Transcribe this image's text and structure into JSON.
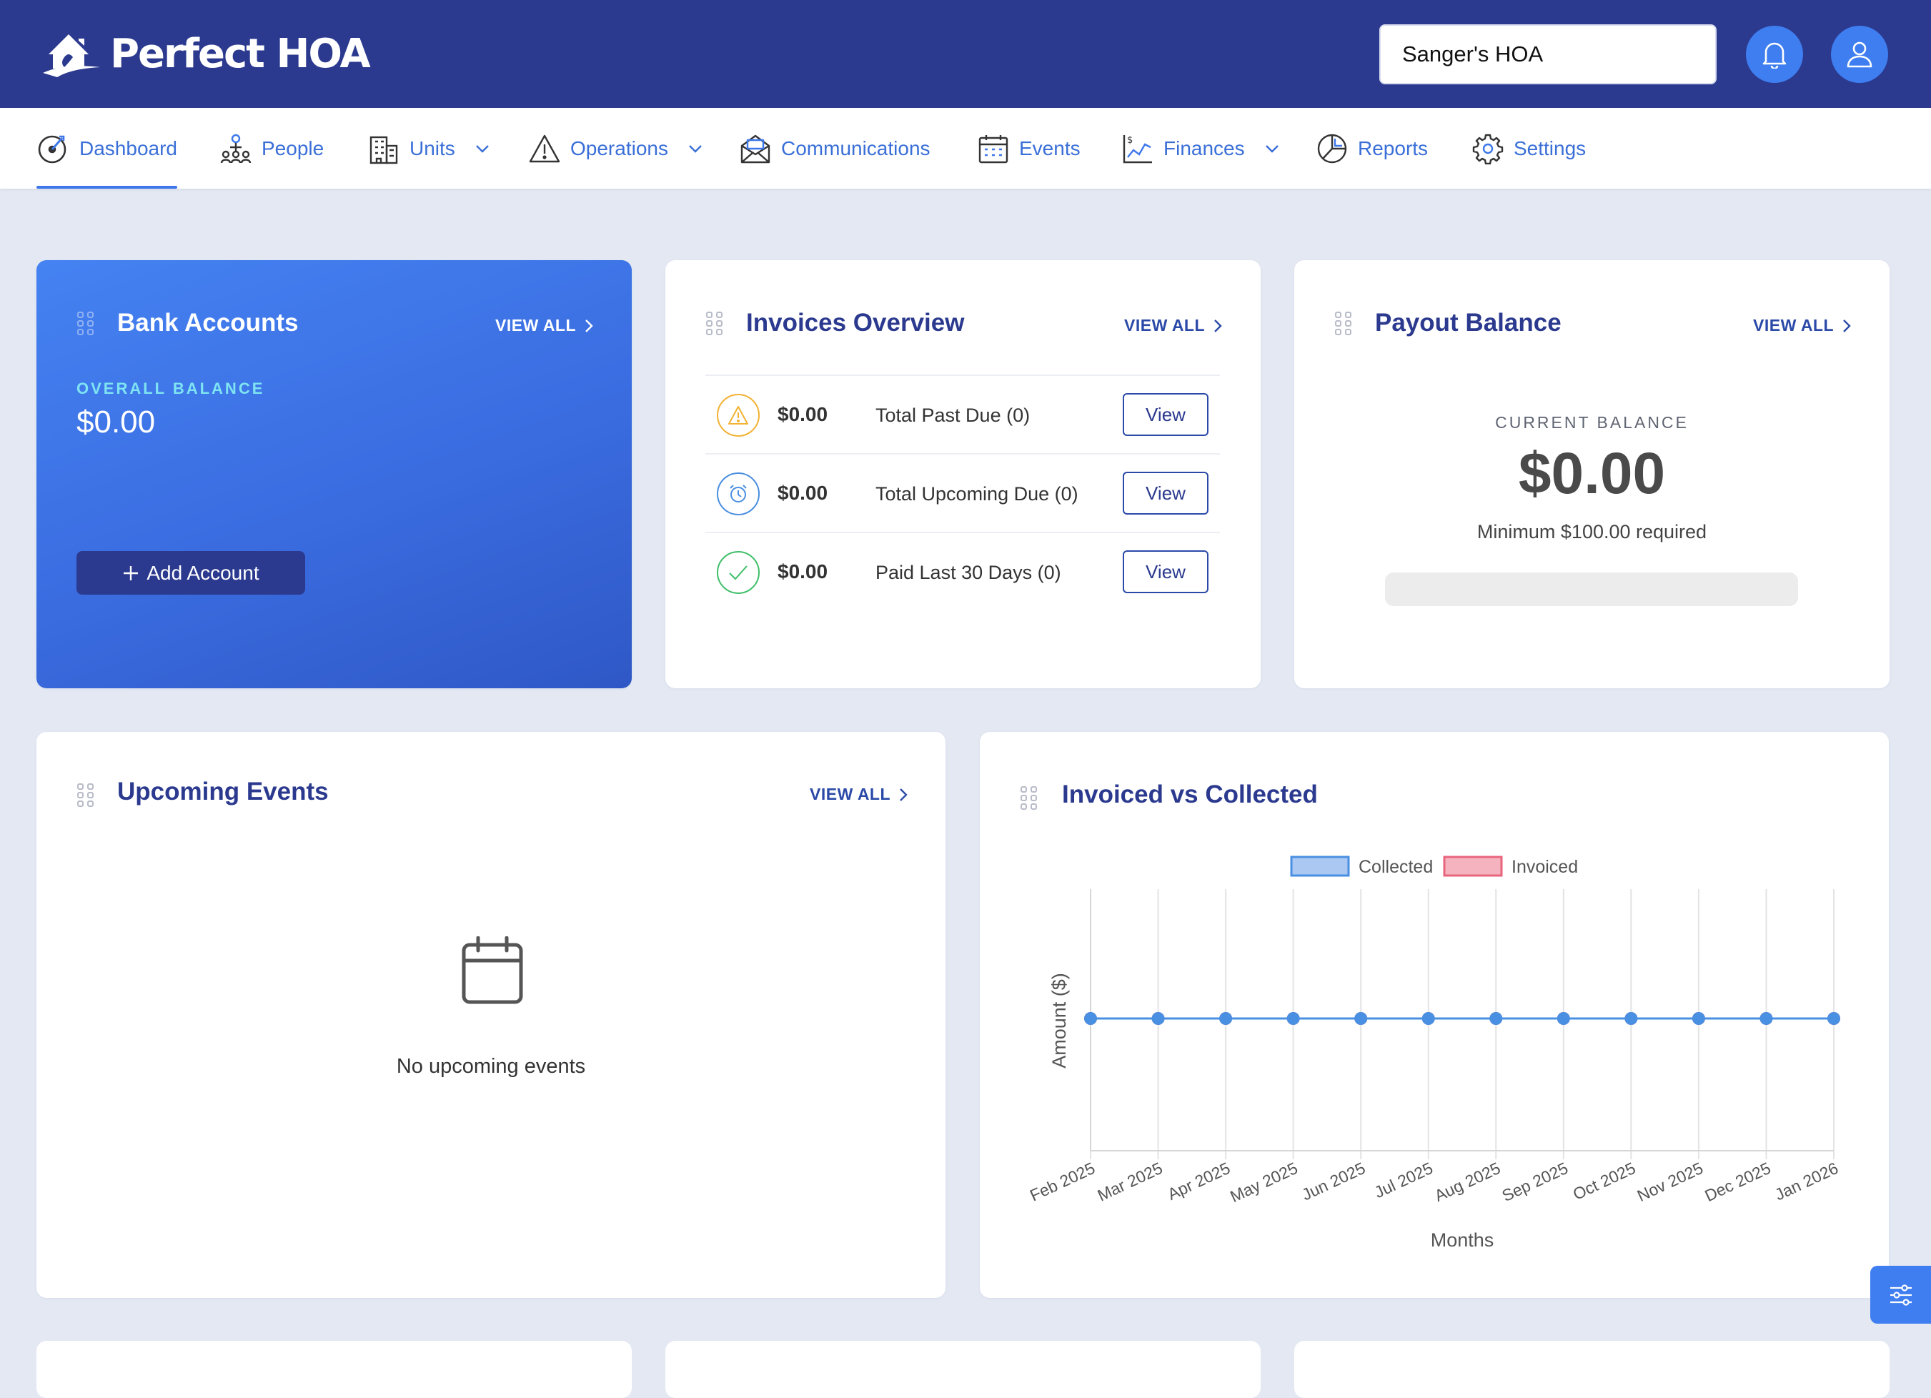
{
  "app": {
    "logo_text": "Perfect HOA"
  },
  "header": {
    "hoa_selector_value": "Sanger's HOA",
    "notification_icon": "bell-icon",
    "profile_icon": "user-icon"
  },
  "nav": {
    "items": [
      {
        "label": "Dashboard",
        "icon": "dashboard-icon",
        "active": true
      },
      {
        "label": "People",
        "icon": "people-icon"
      },
      {
        "label": "Units",
        "icon": "building-icon",
        "dropdown": true
      },
      {
        "label": "Operations",
        "icon": "warning-icon",
        "dropdown": true
      },
      {
        "label": "Communications",
        "icon": "envelope-icon"
      },
      {
        "label": "Events",
        "icon": "calendar-icon"
      },
      {
        "label": "Finances",
        "icon": "finance-chart-icon",
        "dropdown": true
      },
      {
        "label": "Reports",
        "icon": "pie-chart-icon"
      },
      {
        "label": "Settings",
        "icon": "gear-icon"
      }
    ]
  },
  "bank_accounts": {
    "title": "Bank Accounts",
    "view_all": "VIEW ALL",
    "overall_label": "OVERALL BALANCE",
    "overall_value": "$0.00",
    "add_button": "Add Account"
  },
  "invoices_overview": {
    "title": "Invoices Overview",
    "view_all": "VIEW ALL",
    "rows": [
      {
        "amount": "$0.00",
        "label": "Total Past Due (0)",
        "button": "View",
        "icon": "warning-icon",
        "color": "#f2b233"
      },
      {
        "amount": "$0.00",
        "label": "Total Upcoming Due (0)",
        "button": "View",
        "icon": "alarm-clock-icon",
        "color": "#4a8fe0"
      },
      {
        "amount": "$0.00",
        "label": "Paid Last 30 Days (0)",
        "button": "View",
        "icon": "check-icon",
        "color": "#3fbf6a"
      }
    ]
  },
  "payout_balance": {
    "title": "Payout Balance",
    "view_all": "VIEW ALL",
    "current_label": "CURRENT BALANCE",
    "current_value": "$0.00",
    "minimum_text": "Minimum $100.00 required",
    "progress_fraction": 0
  },
  "upcoming_events": {
    "title": "Upcoming Events",
    "view_all": "VIEW ALL",
    "empty_text": "No upcoming events"
  },
  "invoiced_vs_collected": {
    "title": "Invoiced vs Collected"
  },
  "chart_data": {
    "type": "line",
    "title": "Invoiced vs Collected",
    "xlabel": "Months",
    "ylabel": "Amount ($)",
    "categories": [
      "Feb 2025",
      "Mar 2025",
      "Apr 2025",
      "May 2025",
      "Jun 2025",
      "Jul 2025",
      "Aug 2025",
      "Sep 2025",
      "Oct 2025",
      "Nov 2025",
      "Dec 2025",
      "Jan 2026"
    ],
    "series": [
      {
        "name": "Collected",
        "values": [
          0,
          0,
          0,
          0,
          0,
          0,
          0,
          0,
          0,
          0,
          0,
          0
        ],
        "color": "#4a90e2",
        "fill": "#aac8f2"
      },
      {
        "name": "Invoiced",
        "values": [
          0,
          0,
          0,
          0,
          0,
          0,
          0,
          0,
          0,
          0,
          0,
          0
        ],
        "color": "#e8657e",
        "fill": "#f5b3c0"
      }
    ],
    "legend": "top",
    "grid": true,
    "colors": {
      "primary": "#2b3a8f",
      "accent": "#3f7ef0"
    }
  }
}
